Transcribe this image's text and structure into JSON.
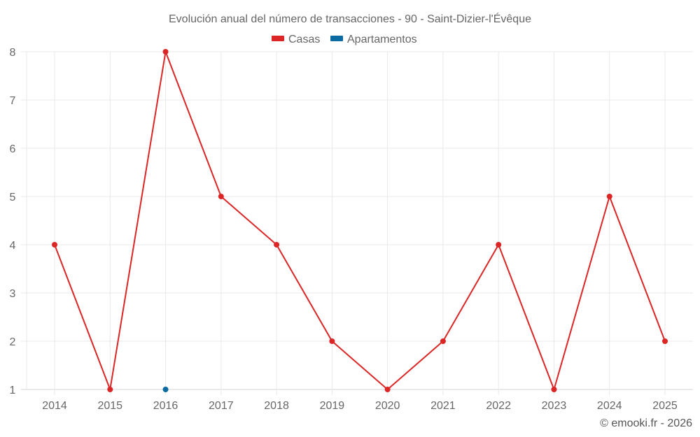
{
  "chart_data": {
    "type": "line",
    "title": "Evolución anual del número de transacciones - 90 - Saint-Dizier-l'Évêque",
    "xlabel": "",
    "ylabel": "",
    "categories": [
      "2014",
      "2015",
      "2016",
      "2017",
      "2018",
      "2019",
      "2020",
      "2021",
      "2022",
      "2023",
      "2024",
      "2025"
    ],
    "ylim": [
      1,
      8
    ],
    "yticks": [
      "1",
      "2",
      "3",
      "4",
      "5",
      "6",
      "7",
      "8"
    ],
    "grid": true,
    "legend_position": "top-center",
    "series": [
      {
        "name": "Casas",
        "color": "#dc2626",
        "values": [
          4,
          1,
          8,
          5,
          4,
          2,
          1,
          2,
          4,
          1,
          5,
          2
        ]
      },
      {
        "name": "Apartamentos",
        "color": "#0a6aa1",
        "values": [
          null,
          null,
          1,
          null,
          null,
          null,
          null,
          null,
          null,
          null,
          null,
          null
        ]
      }
    ]
  },
  "credit": "© emooki.fr - 2026"
}
